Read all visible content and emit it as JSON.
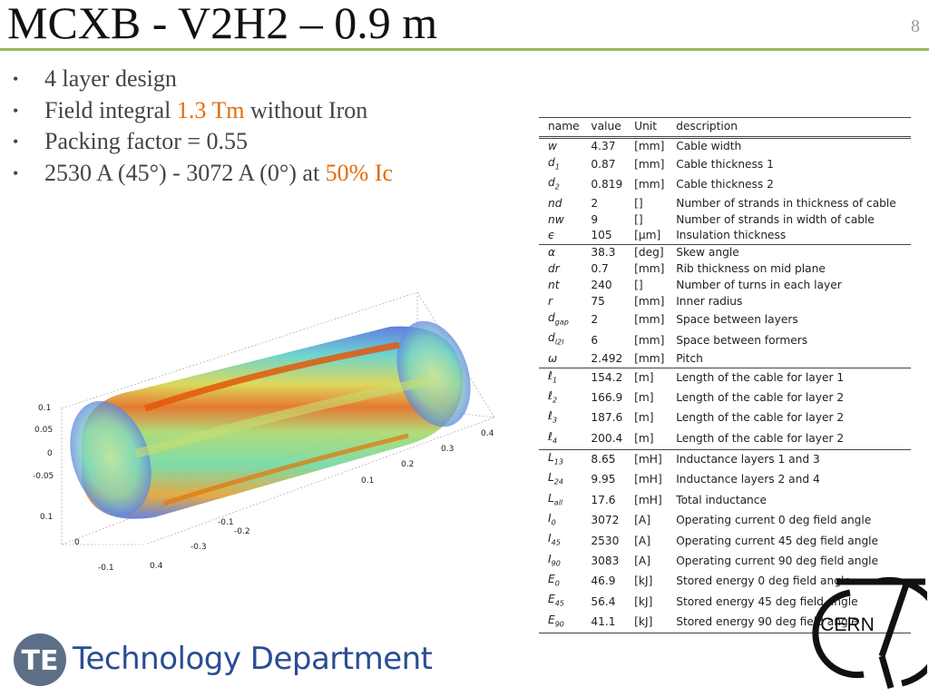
{
  "slide": {
    "title": "MCXB - V2H2 – 0.9 m",
    "page_number": "8",
    "footer_department": "Technology Department",
    "footer_logo_text": "TE",
    "cern_logo_text": "CERN"
  },
  "bullets": [
    {
      "text": "4 layer design"
    },
    {
      "pre": "Field integral ",
      "hl": "1.3 Tm",
      "post": " without Iron"
    },
    {
      "text": "Packing factor = 0.55"
    },
    {
      "pre": "2530 A (45°) - 3072 A (0°) at ",
      "hl": "50% Ic",
      "post": ""
    }
  ],
  "table": {
    "headers": [
      "name",
      "value",
      "Unit",
      "description"
    ],
    "rows": [
      {
        "name": "w",
        "sub": "",
        "value": "4.37",
        "unit": "[mm]",
        "desc": "Cable width",
        "group_start": false
      },
      {
        "name": "d",
        "sub": "1",
        "value": "0.87",
        "unit": "[mm]",
        "desc": "Cable thickness 1",
        "group_start": false
      },
      {
        "name": "d",
        "sub": "2",
        "value": "0.819",
        "unit": "[mm]",
        "desc": "Cable thickness 2",
        "group_start": false
      },
      {
        "name": "nd",
        "sub": "",
        "value": "2",
        "unit": "[]",
        "desc": "Number of strands in thickness of cable",
        "group_start": false
      },
      {
        "name": "nw",
        "sub": "",
        "value": "9",
        "unit": "[]",
        "desc": "Number of strands in width of cable",
        "group_start": false
      },
      {
        "name": "ϵ",
        "sub": "",
        "value": "105",
        "unit": "[μm]",
        "desc": "Insulation thickness",
        "group_start": false
      },
      {
        "name": "α",
        "sub": "",
        "value": "38.3",
        "unit": "[deg]",
        "desc": "Skew angle",
        "group_start": true
      },
      {
        "name": "dr",
        "sub": "",
        "value": "0.7",
        "unit": "[mm]",
        "desc": "Rib thickness on mid plane",
        "group_start": false
      },
      {
        "name": "nt",
        "sub": "",
        "value": "240",
        "unit": "[]",
        "desc": "Number of turns in each layer",
        "group_start": false
      },
      {
        "name": "r",
        "sub": "",
        "value": "75",
        "unit": "[mm]",
        "desc": "Inner radius",
        "group_start": false
      },
      {
        "name": "d",
        "sub": "gap",
        "value": "2",
        "unit": "[mm]",
        "desc": "Space between layers",
        "group_start": false
      },
      {
        "name": "d",
        "sub": "l2l",
        "value": "6",
        "unit": "[mm]",
        "desc": "Space between formers",
        "group_start": false
      },
      {
        "name": "ω",
        "sub": "",
        "value": "2.492",
        "unit": "[mm]",
        "desc": "Pitch",
        "group_start": false
      },
      {
        "name": "ℓ",
        "sub": "1",
        "value": "154.2",
        "unit": "[m]",
        "desc": "Length of the cable for layer 1",
        "group_start": true
      },
      {
        "name": "ℓ",
        "sub": "2",
        "value": "166.9",
        "unit": "[m]",
        "desc": "Length of the cable for layer 2",
        "group_start": false
      },
      {
        "name": "ℓ",
        "sub": "3",
        "value": "187.6",
        "unit": "[m]",
        "desc": "Length of the cable for layer 2",
        "group_start": false
      },
      {
        "name": "ℓ",
        "sub": "4",
        "value": "200.4",
        "unit": "[m]",
        "desc": "Length of the cable for layer 2",
        "group_start": false
      },
      {
        "name": "L",
        "sub": "13",
        "value": "8.65",
        "unit": "[mH]",
        "desc": "Inductance layers 1 and 3",
        "group_start": true
      },
      {
        "name": "L",
        "sub": "24",
        "value": "9.95",
        "unit": "[mH]",
        "desc": "Inductance layers 2 and 4",
        "group_start": false
      },
      {
        "name": "L",
        "sub": "all",
        "value": "17.6",
        "unit": "[mH]",
        "desc": "Total inductance",
        "group_start": false
      },
      {
        "name": "I",
        "sub": "0",
        "value": "3072",
        "unit": "[A]",
        "desc": "Operating current 0 deg field angle",
        "group_start": false
      },
      {
        "name": "I",
        "sub": "45",
        "value": "2530",
        "unit": "[A]",
        "desc": "Operating current 45 deg field angle",
        "group_start": false
      },
      {
        "name": "I",
        "sub": "90",
        "value": "3083",
        "unit": "[A]",
        "desc": "Operating current 90 deg field angle",
        "group_start": false
      },
      {
        "name": "E",
        "sub": "0",
        "value": "46.9",
        "unit": "[kJ]",
        "desc": "Stored energy 0 deg field angle",
        "group_start": false
      },
      {
        "name": "E",
        "sub": "45",
        "value": "56.4",
        "unit": "[kJ]",
        "desc": "Stored energy 45 deg field angle",
        "group_start": false
      },
      {
        "name": "E",
        "sub": "90",
        "value": "41.1",
        "unit": "[kJ]",
        "desc": "Stored energy 90 deg field angle",
        "group_start": false
      }
    ]
  },
  "plot_axes": {
    "left_ticks": [
      "0.1",
      "0.05",
      "0",
      "-0.05",
      "0.1"
    ],
    "bottom_ticks": [
      "0",
      "-0.1",
      "-0.2",
      "-0.3",
      "-0.1",
      "0.4"
    ],
    "right_ticks": [
      "0.1",
      "0.2",
      "0.3",
      "0.4"
    ]
  },
  "colors": {
    "accent_orange": "#e36c09",
    "title_rule_green": "#9bbb59",
    "department_blue": "#2a4d94",
    "te_logo_gray": "#5d6f86"
  }
}
